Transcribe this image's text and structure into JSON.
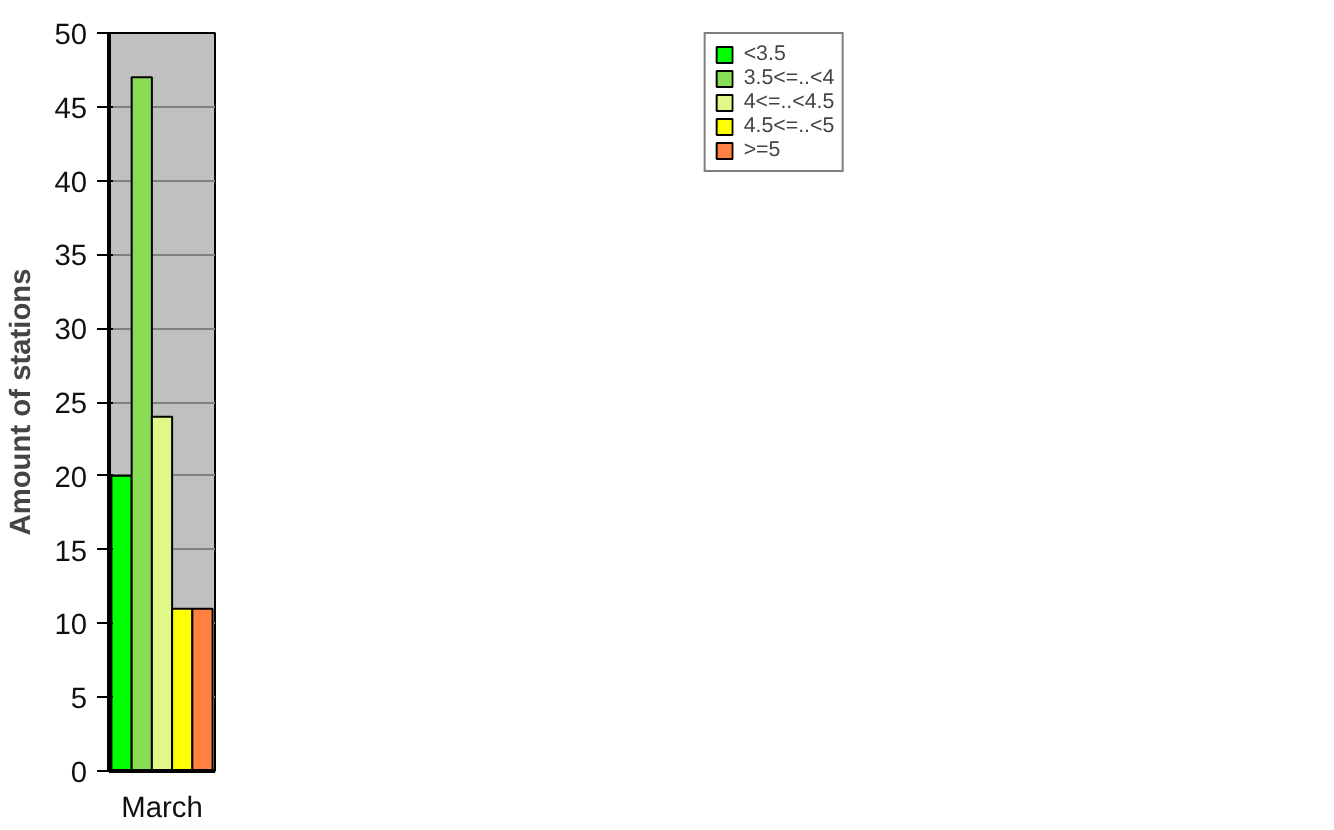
{
  "chart_data": {
    "type": "bar",
    "ylabel": "Amount of stations",
    "categories": [
      "March"
    ],
    "series": [
      {
        "name": "<3.5",
        "color": "#00ff00",
        "values": [
          20
        ]
      },
      {
        "name": "3.5<=..<4",
        "color": "#88dd55",
        "values": [
          47
        ]
      },
      {
        "name": "4<=..<4.5",
        "color": "#e0f888",
        "values": [
          24
        ]
      },
      {
        "name": "4.5<=..<5",
        "color": "#ffff00",
        "values": [
          11
        ]
      },
      {
        "name": ">=5",
        "color": "#ff8040",
        "values": [
          11
        ]
      }
    ],
    "ylim": [
      0,
      50
    ],
    "yticks": [
      0,
      5,
      10,
      15,
      20,
      25,
      30,
      35,
      40,
      45,
      50
    ],
    "grid": "y",
    "legend": "top right"
  }
}
